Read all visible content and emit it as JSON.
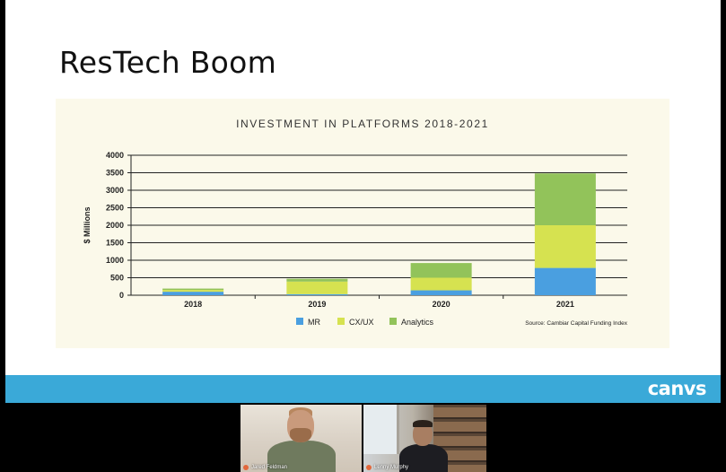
{
  "slide": {
    "title": "ResTech Boom"
  },
  "brand": {
    "logo": "canvs"
  },
  "chart_data": {
    "type": "bar",
    "stacked": true,
    "title": "INVESTMENT IN PLATFORMS 2018-2021",
    "ylabel": "$ Millions",
    "xlabel": "",
    "categories": [
      "2018",
      "2019",
      "2020",
      "2021"
    ],
    "ylim": [
      0,
      4000
    ],
    "yticks": [
      0,
      500,
      1000,
      1500,
      2000,
      2500,
      3000,
      3500,
      4000
    ],
    "grid": true,
    "legend_position": "bottom",
    "series": [
      {
        "name": "MR",
        "color": "#4a9fe0",
        "values": [
          100,
          30,
          140,
          780
        ]
      },
      {
        "name": "CX/UX",
        "color": "#d6e250",
        "values": [
          50,
          360,
          360,
          1220
        ]
      },
      {
        "name": "Analytics",
        "color": "#92c35a",
        "values": [
          40,
          80,
          420,
          1480
        ]
      }
    ],
    "source": "Source: Cambiar Capital Funding Index"
  },
  "participants": [
    {
      "name": "Jared Feldman",
      "mic_icon": "mic-muted-icon"
    },
    {
      "name": "Lenny Murphy",
      "mic_icon": "mic-muted-icon"
    }
  ]
}
